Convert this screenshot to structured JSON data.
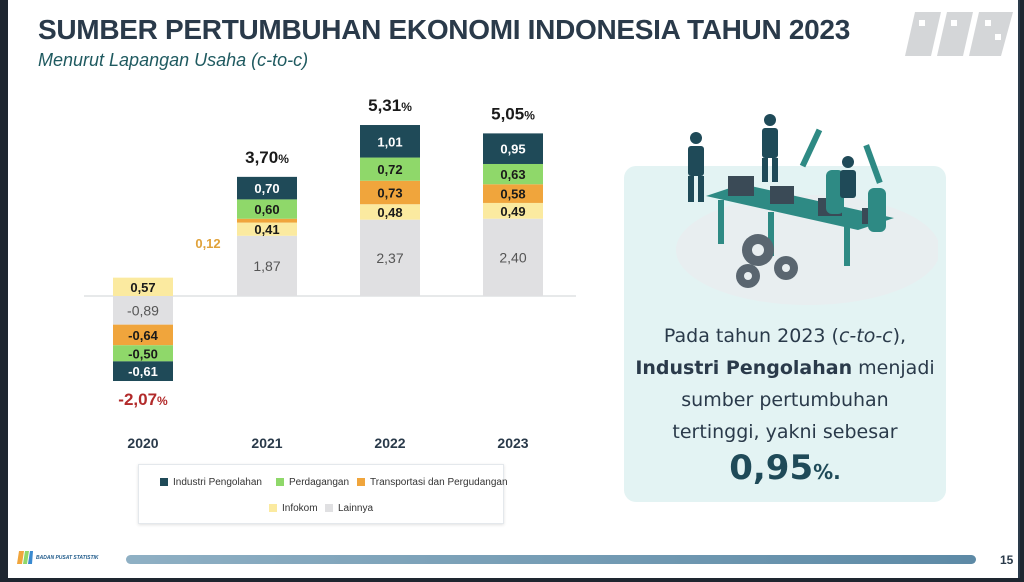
{
  "title": "SUMBER PERTUMBUHAN EKONOMI INDONESIA TAHUN 2023",
  "subtitle": "Menurut Lapangan Usaha (c-to-c)",
  "chart_data": {
    "type": "bar",
    "stacked": true,
    "categories": [
      "2020",
      "2021",
      "2022",
      "2023"
    ],
    "series": [
      {
        "name": "Industri Pengolahan",
        "color": "#1f4a58",
        "values": [
          -0.61,
          0.7,
          1.01,
          0.95
        ],
        "labels": [
          "-0,61",
          "0,70",
          "1,01",
          "0,95"
        ]
      },
      {
        "name": "Perdagangan",
        "color": "#8fd86a",
        "values": [
          -0.5,
          0.6,
          0.72,
          0.63
        ],
        "labels": [
          "-0,50",
          "0,60",
          "0,72",
          "0,63"
        ]
      },
      {
        "name": "Transportasi dan Pergudangan",
        "color": "#f0a53c",
        "values": [
          -0.64,
          0.12,
          0.73,
          0.58
        ],
        "labels": [
          "-0,64",
          "0,12",
          "0,73",
          "0,58"
        ]
      },
      {
        "name": "Infokom",
        "color": "#fbeaa0",
        "values": [
          0.57,
          0.41,
          0.48,
          0.49
        ],
        "labels": [
          "0,57",
          "0,41",
          "0,48",
          "0,49"
        ]
      },
      {
        "name": "Lainnya",
        "color": "#e0e0e2",
        "values": [
          -0.89,
          1.87,
          2.37,
          2.4
        ],
        "labels": [
          "-0,89",
          "1,87",
          "2,37",
          "2,40"
        ]
      }
    ],
    "totals": [
      {
        "num": "-2,07",
        "unit": "%",
        "color": "#b22a2a"
      },
      {
        "num": "3,70",
        "unit": "%",
        "color": "#1a1a1a"
      },
      {
        "num": "5,31",
        "unit": "%",
        "color": "#1a1a1a"
      },
      {
        "num": "5,05",
        "unit": "%",
        "color": "#1a1a1a"
      }
    ],
    "outside_label": {
      "text": "0,12",
      "color": "#e0a23a"
    }
  },
  "callout": {
    "line1_pre": "Pada tahun 2023 (",
    "line1_it": "c-to-c",
    "line1_post": "),",
    "line2_bold": "Industri Pengolahan",
    "line2_post": " menjadi",
    "line3": "sumber pertumbuhan",
    "line4": "tertinggi, yakni sebesar",
    "value": "0,95",
    "value_unit": "%."
  },
  "footer": {
    "org": "BADAN PUSAT STATISTIK",
    "page": "15"
  },
  "icons": {
    "brand": "bps-logo-icon",
    "illustration": "factory-workers-illustration"
  }
}
